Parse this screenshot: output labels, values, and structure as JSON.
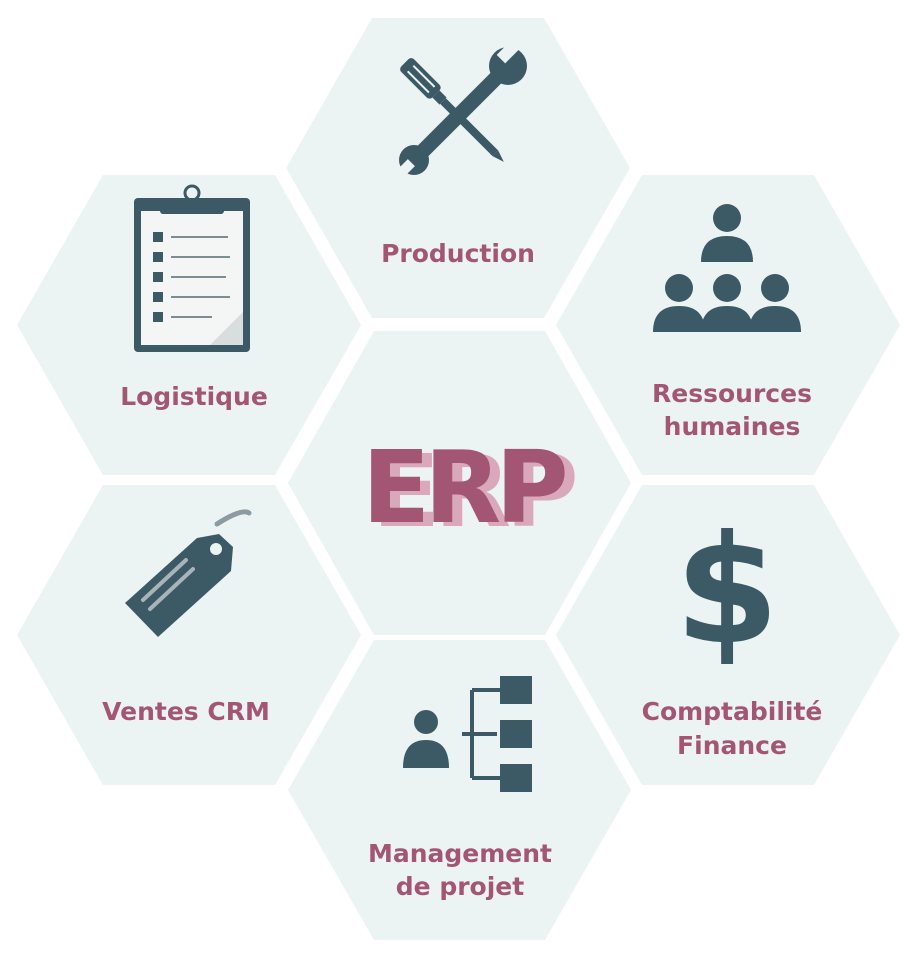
{
  "center": {
    "title": "ERP"
  },
  "modules": {
    "production": {
      "label": "Production"
    },
    "logistique": {
      "label": "Logistique"
    },
    "rh": {
      "line1": "Ressources",
      "line2": "humaines"
    },
    "ventes": {
      "label": "Ventes CRM"
    },
    "comptabilite": {
      "line1": "Comptabilité",
      "line2": "Finance"
    },
    "management": {
      "line1": "Management",
      "line2": "de projet"
    }
  },
  "icons": {
    "production": "tools-icon",
    "logistique": "clipboard-checklist-icon",
    "rh": "team-icon",
    "ventes": "price-tag-icon",
    "comptabilite": "dollar-icon",
    "management": "org-chart-icon"
  },
  "colors": {
    "hex_fill": "#ecf3f3",
    "label": "#a35574",
    "erp_front": "#a35574",
    "erp_shadow": "#d9a9bb",
    "icon": "#3c5a66"
  }
}
